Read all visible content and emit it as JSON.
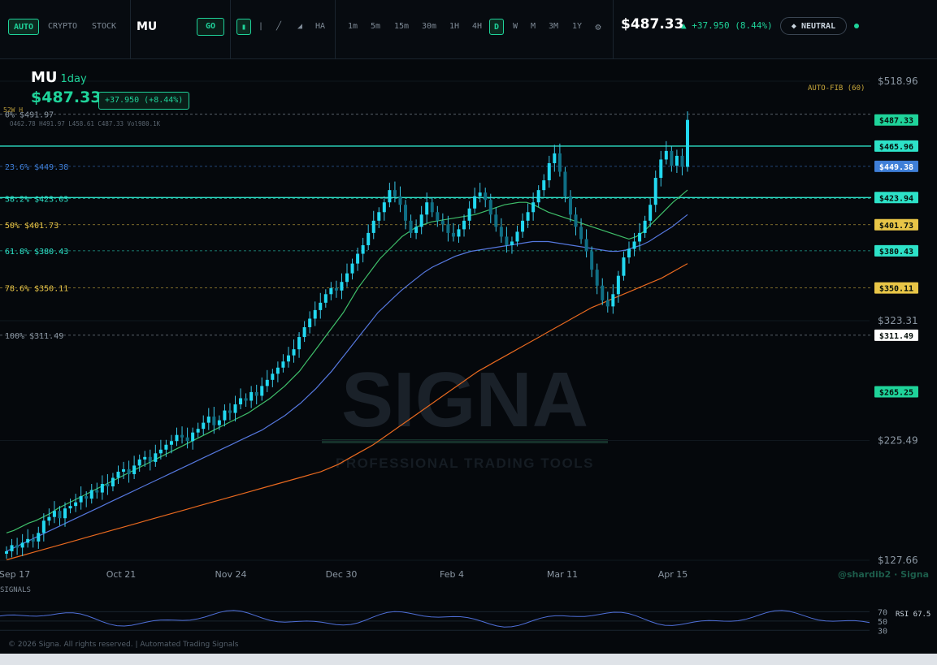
{
  "toolbar": {
    "modes": [
      "AUTO",
      "CRYPTO",
      "STOCK"
    ],
    "active_mode": "AUTO",
    "ticker": "MU",
    "go_label": "GO",
    "draw_tools": [
      "candle-icon",
      "bar-icon",
      "line-icon",
      "area-icon"
    ],
    "ha_label": "HA",
    "timeframes": [
      "1m",
      "5m",
      "15m",
      "30m",
      "1H",
      "4H",
      "D",
      "W",
      "M",
      "3M",
      "1Y"
    ],
    "active_timeframe": "D",
    "price": "$487.33",
    "change": "▲ +37.950 (8.44%)",
    "sentiment": "◆ NEUTRAL"
  },
  "chart_header": {
    "symbol": "MU",
    "timeframe": "1day",
    "price": "$487.33",
    "change": "+37.950 (+8.44%)",
    "high52_label": "52W H",
    "ohlc": "O462.78  H491.97  L458.61  C487.33  Vol980.1K"
  },
  "autofib_label": "AUTO-FIB (60)",
  "watermark": {
    "brand": "SIGNA",
    "tagline": "PROFESSIONAL TRADING TOOLS"
  },
  "credit": "@shardib2 · Signa",
  "signals_label": "SIGNALS",
  "rsi_label": "RSI 67.5",
  "rsi_ticks": [
    "70",
    "50",
    "30"
  ],
  "footer": "© 2026 Signa. All rights reserved.  |  Automated Trading Signals",
  "colors": {
    "accent": "#1fd39a",
    "cyan": "#2de2c8",
    "fib_blue": "#3f7fd8",
    "fib_gold": "#e8c547",
    "ema_fast": "#3fbf6a",
    "ema_mid": "#5577dd",
    "ema_slow": "#e8691f"
  },
  "chart_data": {
    "type": "candlestick",
    "x_ticks": [
      "Sep 17",
      "Oct 21",
      "Nov 24",
      "Dec 30",
      "Feb 4",
      "Mar 11",
      "Apr 15"
    ],
    "y_axis_labels": [
      "$518.96",
      "$323.31",
      "$225.49",
      "$127.66"
    ],
    "ylim": [
      127.66,
      518.96
    ],
    "fib_levels": [
      {
        "label": "0% $491.97",
        "value": 491.97,
        "color": "#8b97a3"
      },
      {
        "label": "23.6% $449.38",
        "value": 449.38,
        "color": "#3f7fd8"
      },
      {
        "label": "38.2% $423.03",
        "value": 423.03,
        "color": "#2de2c8"
      },
      {
        "label": "50% $401.73",
        "value": 401.73,
        "color": "#e8c547"
      },
      {
        "label": "61.8% $380.43",
        "value": 380.43,
        "color": "#2de2c8"
      },
      {
        "label": "78.6% $350.11",
        "value": 350.11,
        "color": "#e8c547"
      },
      {
        "label": "100% $311.49",
        "value": 311.49,
        "color": "#8b97a3"
      }
    ],
    "price_tags": [
      {
        "label": "$487.33",
        "value": 487.33,
        "color": "#1fd39a"
      },
      {
        "label": "$465.96",
        "value": 465.96,
        "color": "#2de2c8"
      },
      {
        "label": "$449.38",
        "value": 449.38,
        "color": "#3f7fd8"
      },
      {
        "label": "$423.94",
        "value": 423.94,
        "color": "#2de2c8"
      },
      {
        "label": "$401.73",
        "value": 401.73,
        "color": "#e8c547"
      },
      {
        "label": "$380.43",
        "value": 380.43,
        "color": "#2de2c8"
      },
      {
        "label": "$350.11",
        "value": 350.11,
        "color": "#e8c547"
      },
      {
        "label": "$311.49",
        "value": 311.49,
        "color": "#ffffff"
      },
      {
        "label": "$265.25",
        "value": 265.25,
        "color": "#1fd39a"
      }
    ],
    "hlines": [
      465.96,
      423.94
    ],
    "closes": [
      135,
      140,
      138,
      142,
      145,
      143,
      150,
      160,
      163,
      168,
      162,
      170,
      172,
      175,
      180,
      178,
      185,
      183,
      190,
      188,
      195,
      200,
      202,
      198,
      205,
      210,
      212,
      208,
      215,
      218,
      222,
      225,
      230,
      228,
      225,
      232,
      235,
      240,
      245,
      238,
      242,
      250,
      248,
      255,
      260,
      258,
      265,
      262,
      270,
      275,
      280,
      285,
      290,
      295,
      300,
      310,
      318,
      325,
      332,
      338,
      345,
      350,
      348,
      355,
      362,
      370,
      378,
      385,
      395,
      405,
      412,
      420,
      430,
      425,
      418,
      405,
      395,
      400,
      410,
      420,
      412,
      405,
      402,
      395,
      392,
      398,
      405,
      415,
      425,
      428,
      422,
      410,
      400,
      392,
      385,
      388,
      396,
      405,
      412,
      420,
      430,
      438,
      452,
      460,
      445,
      425,
      410,
      400,
      390,
      380,
      365,
      352,
      340,
      335,
      345,
      360,
      375,
      382,
      388,
      395,
      405,
      418,
      440,
      455,
      462,
      450,
      458,
      449,
      487.33
    ],
    "ema_fast": [
      150,
      152,
      155,
      158,
      160,
      163,
      166,
      170,
      173,
      176,
      179,
      182,
      185,
      188,
      191,
      194,
      197,
      200,
      203,
      206,
      209,
      212,
      215,
      218,
      221,
      224,
      227,
      230,
      233,
      236,
      239,
      242,
      245,
      248,
      252,
      256,
      260,
      265,
      270,
      276,
      282,
      290,
      298,
      306,
      314,
      322,
      330,
      340,
      350,
      358,
      366,
      374,
      380,
      386,
      392,
      396,
      400,
      402,
      404,
      405,
      406,
      407,
      408,
      409,
      410,
      412,
      414,
      416,
      418,
      419,
      420,
      420,
      418,
      415,
      412,
      410,
      408,
      406,
      404,
      402,
      400,
      398,
      396,
      394,
      392,
      390,
      392,
      396,
      402,
      408,
      414,
      420,
      425,
      430
    ],
    "ema_mid": [
      135,
      138,
      141,
      144,
      147,
      150,
      153,
      156,
      159,
      162,
      165,
      168,
      171,
      174,
      177,
      180,
      183,
      186,
      189,
      192,
      195,
      198,
      201,
      204,
      207,
      210,
      213,
      216,
      219,
      222,
      225,
      228,
      231,
      234,
      238,
      242,
      246,
      251,
      256,
      262,
      268,
      275,
      282,
      290,
      298,
      306,
      314,
      322,
      330,
      336,
      342,
      348,
      353,
      358,
      363,
      367,
      370,
      373,
      376,
      378,
      380,
      381,
      382,
      383,
      384,
      385,
      386,
      387,
      388,
      388,
      388,
      387,
      386,
      385,
      384,
      383,
      382,
      381,
      380,
      380,
      381,
      383,
      385,
      388,
      392,
      396,
      400,
      405,
      410
    ],
    "ema_slow": [
      128,
      130,
      132,
      134,
      136,
      138,
      140,
      142,
      144,
      146,
      148,
      150,
      152,
      154,
      156,
      158,
      160,
      162,
      164,
      166,
      168,
      170,
      172,
      174,
      176,
      178,
      180,
      182,
      184,
      186,
      188,
      190,
      192,
      194,
      196,
      198,
      200,
      203,
      206,
      210,
      214,
      218,
      222,
      227,
      232,
      237,
      242,
      247,
      252,
      257,
      262,
      267,
      272,
      277,
      282,
      286,
      290,
      294,
      298,
      302,
      306,
      310,
      314,
      318,
      322,
      326,
      330,
      334,
      337,
      340,
      343,
      346,
      349,
      352,
      355,
      358,
      362,
      366,
      370
    ]
  }
}
